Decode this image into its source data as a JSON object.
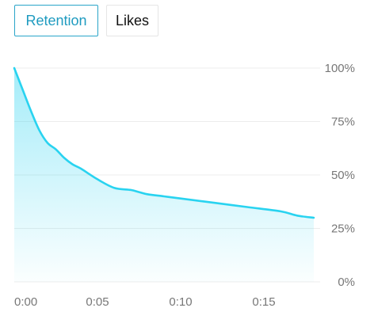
{
  "tabs": [
    {
      "label": "Retention",
      "active": true
    },
    {
      "label": "Likes",
      "active": false
    }
  ],
  "colors": {
    "accent": "#29d3f0",
    "tab_active": "#1f9bc0",
    "grid": "#ececec",
    "tick": "#777777"
  },
  "chart_data": {
    "type": "area",
    "x_unit": "seconds",
    "xlim": [
      0,
      18
    ],
    "ylim": [
      0,
      100
    ],
    "x_ticks": [
      {
        "value": 0,
        "label": "0:00"
      },
      {
        "value": 5,
        "label": "0:05"
      },
      {
        "value": 10,
        "label": "0:10"
      },
      {
        "value": 15,
        "label": "0:15"
      }
    ],
    "y_ticks": [
      {
        "value": 100,
        "label": "100%"
      },
      {
        "value": 75,
        "label": "75%"
      },
      {
        "value": 50,
        "label": "50%"
      },
      {
        "value": 25,
        "label": "25%"
      },
      {
        "value": 0,
        "label": "0%"
      }
    ],
    "series": [
      {
        "x": [
          0,
          0.5,
          1,
          1.5,
          2,
          2.5,
          3,
          3.5,
          4,
          5,
          6,
          7,
          7.5,
          8,
          9,
          10,
          12,
          14,
          16,
          17,
          18
        ],
        "y": [
          100,
          90,
          80,
          71,
          65,
          62,
          58,
          55,
          53,
          48,
          44,
          43,
          42,
          41,
          40,
          39,
          37,
          35,
          33,
          31,
          30
        ]
      }
    ],
    "grid": true,
    "legend": false
  }
}
